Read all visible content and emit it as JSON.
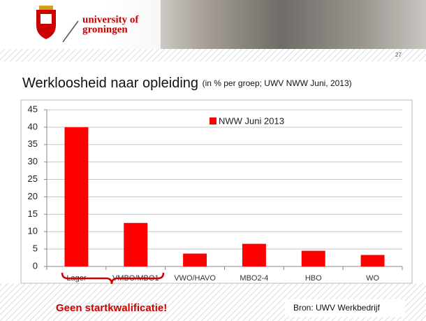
{
  "header": {
    "logo_line1": "university of",
    "logo_line2": "groningen",
    "page_number": "27"
  },
  "chart_data": {
    "type": "bar",
    "title": "Werkloosheid naar opleiding",
    "subtitle": "(in % per groep; UWV NWW Juni, 2013)",
    "categories": [
      "Lager",
      "VMBO/MBO1",
      "VWO/HAVO",
      "MBO2-4",
      "HBO",
      "WO"
    ],
    "series": [
      {
        "name": "NWW Juni 2013",
        "color": "#ff0000",
        "values": [
          40,
          12.5,
          3.7,
          6.5,
          4.5,
          3.3
        ]
      }
    ],
    "ylim": [
      0,
      45
    ],
    "yticks": [
      0,
      5,
      10,
      15,
      20,
      25,
      30,
      35,
      40,
      45
    ],
    "grid": true,
    "annotation": "Geen startkwalificatie!",
    "source": "Bron: UWV Werkbedrijf"
  }
}
